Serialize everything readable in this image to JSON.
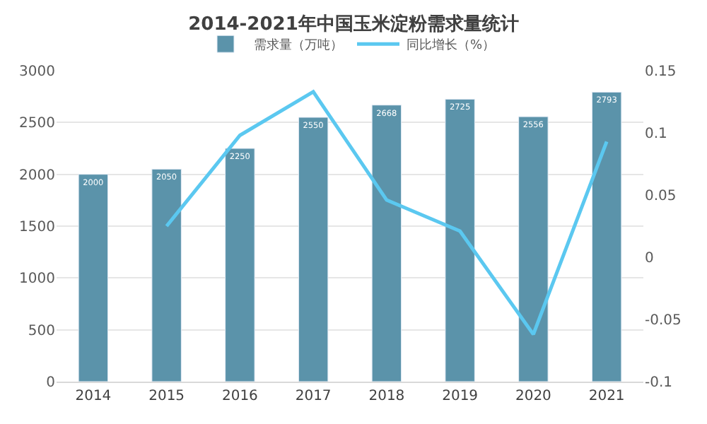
{
  "chart_data": {
    "type": "bar",
    "title": "2014-2021年中国玉米淀粉需求量统计",
    "categories": [
      "2014",
      "2015",
      "2016",
      "2017",
      "2018",
      "2019",
      "2020",
      "2021"
    ],
    "series": [
      {
        "name": "需求量（万吨）",
        "color": "#5b93aa",
        "values": [
          2000,
          2050,
          2250,
          2550,
          2668,
          2725,
          2556,
          2793
        ],
        "data_labels": true
      },
      {
        "name": "同比增长（%）",
        "type": "line",
        "axis": "y2",
        "color": "#5bc8f0",
        "values": [
          null,
          0.025,
          0.098,
          0.133,
          0.046,
          0.021,
          -0.062,
          0.093
        ],
        "marker": "none"
      }
    ],
    "ylim": [
      0,
      3000
    ],
    "yticks": [
      0,
      500,
      1000,
      1500,
      2000,
      2500,
      3000
    ],
    "y2lim": [
      -0.1,
      0.15
    ],
    "y2ticks": [
      -0.1,
      -0.05,
      0,
      0.05,
      0.1,
      0.15
    ],
    "grid": "y",
    "legend": "top"
  }
}
